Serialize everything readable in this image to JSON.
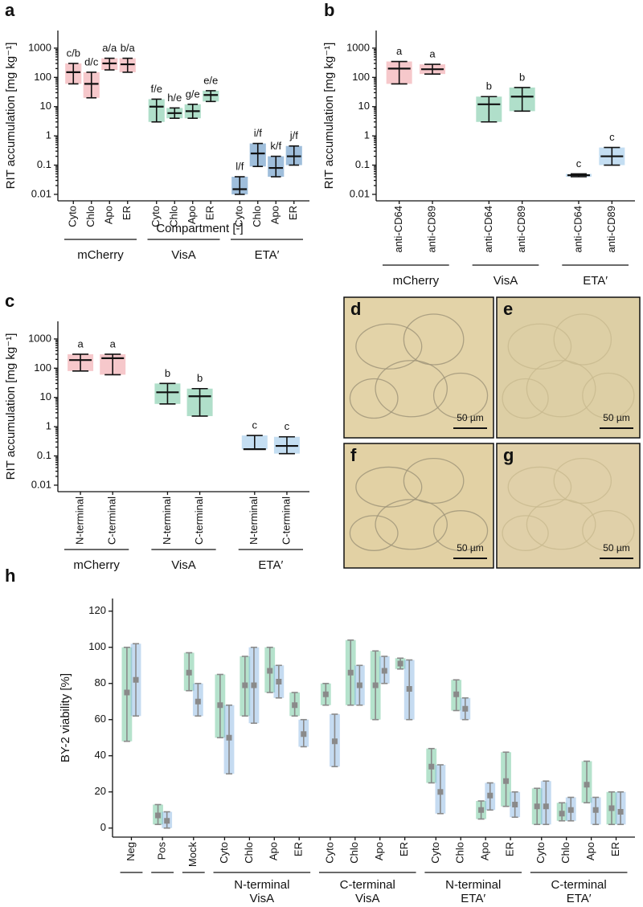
{
  "chart_data": [
    {
      "type": "stripplot",
      "panel": "a",
      "y_label": "RIT accumulation [mg kg⁻¹]",
      "x_label": "Compartment [-]",
      "log": true,
      "ylim": [
        0.006,
        4000
      ],
      "yticks": [
        0.01,
        0.1,
        1,
        10,
        100,
        1000
      ],
      "series": [
        {
          "name": "mCherry",
          "color": "#ec858c",
          "categories": [
            "Cyto",
            "Chlo",
            "Apo",
            "ER"
          ],
          "mean": [
            150,
            60,
            300,
            280
          ],
          "low": [
            60,
            20,
            180,
            150
          ],
          "high": [
            300,
            150,
            450,
            450
          ],
          "letters": [
            "c/b",
            "d/c",
            "a/a",
            "b/a"
          ]
        },
        {
          "name": "VisA",
          "color": "#4fb98a",
          "categories": [
            "Cyto",
            "Chlo",
            "Apo",
            "ER"
          ],
          "mean": [
            10,
            6,
            7,
            25
          ],
          "low": [
            3,
            4,
            4,
            15
          ],
          "high": [
            18,
            9,
            12,
            35
          ],
          "letters": [
            "f/e",
            "h/e",
            "g/e",
            "e/e"
          ]
        },
        {
          "name": "ETA′",
          "color": "#2a6fb0",
          "categories": [
            "Cyto",
            "Chlo",
            "Apo",
            "ER"
          ],
          "mean": [
            0.015,
            0.25,
            0.08,
            0.2
          ],
          "low": [
            0.01,
            0.09,
            0.04,
            0.1
          ],
          "high": [
            0.04,
            0.55,
            0.2,
            0.45
          ],
          "letters": [
            "l/f",
            "i/f",
            "k/f",
            "j/f"
          ]
        }
      ]
    },
    {
      "type": "stripplot",
      "panel": "b",
      "y_label": "RIT accumulation [mg kg⁻¹]",
      "log": true,
      "ylim": [
        0.006,
        4000
      ],
      "yticks": [
        0.01,
        0.1,
        1,
        10,
        100,
        1000
      ],
      "series": [
        {
          "name": "mCherry",
          "color": "#ec858c",
          "categories": [
            "anti-CD64",
            "anti-CD89"
          ],
          "mean": [
            200,
            190
          ],
          "low": [
            60,
            130
          ],
          "high": [
            350,
            280
          ],
          "letters": [
            "a",
            "a"
          ]
        },
        {
          "name": "VisA",
          "color": "#4fb98a",
          "categories": [
            "anti-CD64",
            "anti-CD89"
          ],
          "mean": [
            12,
            22
          ],
          "low": [
            3,
            7
          ],
          "high": [
            22,
            45
          ],
          "letters": [
            "b",
            "b"
          ]
        },
        {
          "name": "ETA′",
          "color": "#7db6e3",
          "categories": [
            "anti-CD64",
            "anti-CD89"
          ],
          "mean": [
            0.045,
            0.2
          ],
          "low": [
            0.04,
            0.1
          ],
          "high": [
            0.05,
            0.4
          ],
          "letters": [
            "c",
            "c"
          ]
        }
      ]
    },
    {
      "type": "stripplot",
      "panel": "c",
      "y_label": "RIT accumulation [mg kg⁻¹]",
      "log": true,
      "ylim": [
        0.006,
        4000
      ],
      "yticks": [
        0.01,
        0.1,
        1,
        10,
        100,
        1000
      ],
      "series": [
        {
          "name": "mCherry",
          "color": "#ec858c",
          "categories": [
            "N-terminal",
            "C-terminal"
          ],
          "mean": [
            190,
            220
          ],
          "low": [
            80,
            60
          ],
          "high": [
            300,
            300
          ],
          "letters": [
            "a",
            "a"
          ]
        },
        {
          "name": "VisA",
          "color": "#4fb98a",
          "categories": [
            "N-terminal",
            "C-terminal"
          ],
          "mean": [
            15,
            11
          ],
          "low": [
            6,
            2.3
          ],
          "high": [
            30,
            20
          ],
          "letters": [
            "b",
            "b"
          ]
        },
        {
          "name": "ETA′",
          "color": "#7db6e3",
          "categories": [
            "N-terminal",
            "C-terminal"
          ],
          "mean": [
            0.17,
            0.22
          ],
          "low": [
            0.17,
            0.12
          ],
          "high": [
            0.5,
            0.45
          ],
          "letters": [
            "c",
            "c"
          ]
        }
      ]
    },
    {
      "type": "dotplot",
      "panel": "h",
      "y_label": "BY-2 viability [%]",
      "log": false,
      "ylim": [
        -5,
        127
      ],
      "yticks": [
        0,
        20,
        40,
        60,
        80,
        100,
        120
      ],
      "groups": [
        {
          "categories": [
            "Neg"
          ]
        },
        {
          "categories": [
            "Pos"
          ]
        },
        {
          "categories": [
            "Mock"
          ]
        },
        {
          "name": [
            "N-terminal",
            "VisA"
          ],
          "categories": [
            "Cyto",
            "Chlo",
            "Apo",
            "ER"
          ]
        },
        {
          "name": [
            "C-terminal",
            "VisA"
          ],
          "categories": [
            "Cyto",
            "Chlo",
            "Apo",
            "ER"
          ]
        },
        {
          "name": [
            "N-terminal",
            "ETA′"
          ],
          "categories": [
            "Cyto",
            "Chlo",
            "Apo",
            "ER"
          ]
        },
        {
          "name": [
            "C-terminal",
            "ETA′"
          ],
          "categories": [
            "Cyto",
            "Chlo",
            "Apo",
            "ER"
          ]
        }
      ],
      "series": [
        {
          "color": "#5cbf8f",
          "mean": [
            75,
            7,
            86,
            68,
            79,
            87,
            68,
            74,
            86,
            79,
            91,
            34,
            74,
            10,
            26,
            12,
            8,
            24,
            11
          ],
          "low": [
            48,
            2,
            76,
            50,
            62,
            75,
            62,
            68,
            68,
            60,
            88,
            25,
            65,
            5,
            12,
            2,
            4,
            14,
            2
          ],
          "high": [
            100,
            13,
            97,
            85,
            95,
            100,
            75,
            80,
            104,
            98,
            94,
            44,
            82,
            15,
            42,
            22,
            14,
            37,
            20
          ]
        },
        {
          "color": "#7fb0df",
          "mean": [
            82,
            4,
            70,
            50,
            79,
            81,
            52,
            48,
            79,
            87,
            77,
            20,
            66,
            18,
            13,
            12,
            10,
            10,
            9
          ],
          "low": [
            62,
            0,
            62,
            30,
            58,
            72,
            45,
            34,
            68,
            80,
            60,
            8,
            60,
            10,
            6,
            2,
            4,
            2,
            2
          ],
          "high": [
            102,
            9,
            80,
            68,
            100,
            90,
            60,
            63,
            90,
            95,
            93,
            35,
            72,
            25,
            20,
            26,
            17,
            17,
            20
          ]
        }
      ]
    }
  ],
  "micrographs": [
    {
      "panel": "d",
      "scale_bar": "50 µm"
    },
    {
      "panel": "e",
      "scale_bar": "50 µm"
    },
    {
      "panel": "f",
      "scale_bar": "50 µm"
    },
    {
      "panel": "g",
      "scale_bar": "50 µm"
    }
  ]
}
